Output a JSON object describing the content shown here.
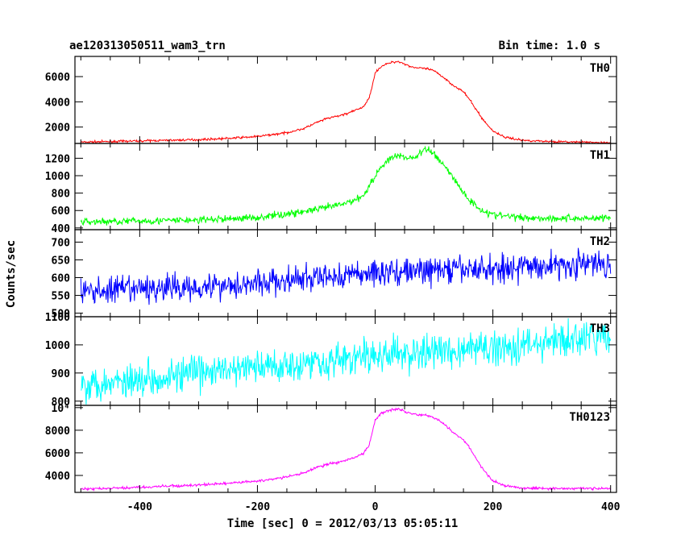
{
  "chart_data": {
    "type": "line",
    "title": "ae120313050511_wam3_trn",
    "subtitle": "Bin time: 1.0 s",
    "xlabel": "Time [sec] 0 = 2012/03/13 05:05:11",
    "ylabel": "Counts/sec",
    "xlim": [
      -510,
      410
    ],
    "x_ticks": [
      -400,
      -200,
      0,
      200,
      400
    ],
    "grid": false,
    "panels": [
      {
        "name": "TH0",
        "color": "#ff0000",
        "noise": 60,
        "ylim": [
          700,
          7600
        ],
        "y_ticks": [
          2000,
          4000,
          6000
        ],
        "y_tick_labels": [
          "2000",
          "4000",
          "6000"
        ],
        "series": {
          "x": [
            -500,
            -450,
            -400,
            -350,
            -300,
            -250,
            -200,
            -150,
            -120,
            -100,
            -80,
            -60,
            -40,
            -20,
            -10,
            0,
            10,
            20,
            30,
            40,
            50,
            60,
            70,
            80,
            90,
            100,
            110,
            120,
            130,
            140,
            150,
            160,
            170,
            180,
            190,
            200,
            220,
            250,
            300,
            350,
            400
          ],
          "y": [
            800,
            850,
            900,
            950,
            1000,
            1100,
            1250,
            1550,
            1900,
            2350,
            2700,
            2900,
            3200,
            3600,
            4300,
            6300,
            6800,
            7000,
            7150,
            7200,
            7000,
            6800,
            6700,
            6650,
            6600,
            6450,
            6150,
            5800,
            5400,
            5100,
            4800,
            4200,
            3500,
            2800,
            2200,
            1700,
            1200,
            950,
            850,
            800,
            750
          ]
        }
      },
      {
        "name": "TH1",
        "color": "#00ff00",
        "noise": 30,
        "ylim": [
          380,
          1370
        ],
        "y_ticks": [
          400,
          600,
          800,
          1000,
          1200
        ],
        "y_tick_labels": [
          "400",
          "600",
          "800",
          "1000",
          "1200"
        ],
        "series": {
          "x": [
            -500,
            -400,
            -300,
            -200,
            -150,
            -100,
            -50,
            -20,
            0,
            20,
            40,
            60,
            70,
            80,
            90,
            100,
            120,
            140,
            160,
            180,
            200,
            250,
            300,
            350,
            400
          ],
          "y": [
            470,
            480,
            490,
            520,
            560,
            610,
            680,
            770,
            1000,
            1180,
            1230,
            1200,
            1220,
            1280,
            1300,
            1250,
            1100,
            900,
            720,
            610,
            550,
            520,
            510,
            510,
            520
          ]
        }
      },
      {
        "name": "TH2",
        "color": "#0000ff",
        "noise": 28,
        "ylim": [
          490,
          735
        ],
        "y_ticks": [
          500,
          550,
          600,
          650,
          700
        ],
        "y_tick_labels": [
          "500",
          "550",
          "600",
          "650",
          "700"
        ],
        "series": {
          "x": [
            -500,
            -300,
            -150,
            0,
            100,
            200,
            300,
            400
          ],
          "y": [
            560,
            575,
            590,
            615,
            620,
            625,
            635,
            640
          ]
        }
      },
      {
        "name": "TH3",
        "color": "#00ffff",
        "noise": 45,
        "ylim": [
          785,
          1100
        ],
        "y_ticks": [
          800,
          900,
          1000,
          1100
        ],
        "y_tick_labels": [
          "800",
          "900",
          "1000",
          "1100"
        ],
        "series": {
          "x": [
            -500,
            -400,
            -300,
            -200,
            -100,
            0,
            100,
            200,
            300,
            400
          ],
          "y": [
            860,
            880,
            900,
            920,
            940,
            960,
            975,
            990,
            1010,
            1030
          ]
        }
      },
      {
        "name": "TH0123",
        "color": "#ff00ff",
        "noise": 80,
        "ylim": [
          2500,
          10200
        ],
        "y_ticks": [
          4000,
          6000,
          8000,
          10000
        ],
        "y_tick_labels": [
          "4000",
          "6000",
          "8000",
          "10⁴"
        ],
        "series": {
          "x": [
            -500,
            -450,
            -400,
            -350,
            -300,
            -250,
            -200,
            -150,
            -120,
            -100,
            -80,
            -60,
            -40,
            -20,
            -10,
            0,
            10,
            20,
            30,
            40,
            50,
            60,
            70,
            80,
            90,
            100,
            110,
            120,
            130,
            140,
            150,
            160,
            170,
            180,
            190,
            200,
            220,
            250,
            300,
            350,
            400
          ],
          "y": [
            2800,
            2850,
            2950,
            3050,
            3150,
            3300,
            3500,
            3850,
            4250,
            4700,
            5000,
            5200,
            5500,
            5900,
            6700,
            8900,
            9500,
            9700,
            9850,
            9900,
            9700,
            9500,
            9400,
            9350,
            9300,
            9150,
            8800,
            8400,
            7900,
            7500,
            7150,
            6500,
            5600,
            4800,
            4100,
            3500,
            3100,
            2900,
            2850,
            2850,
            2850
          ]
        }
      }
    ]
  }
}
